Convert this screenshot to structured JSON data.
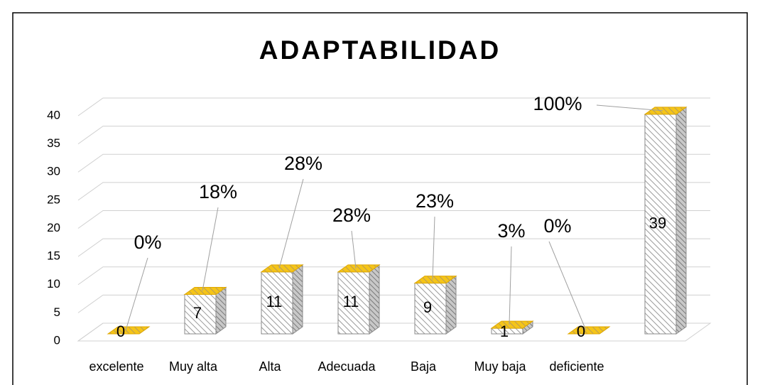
{
  "chart_data": {
    "type": "bar3d",
    "title": "ADAPTABILIDAD",
    "categories": [
      "excelente",
      "Muy alta",
      "Alta",
      "Adecuada",
      "Baja",
      "Muy baja",
      "deficiente",
      null
    ],
    "values": [
      0,
      7,
      11,
      11,
      9,
      1,
      0,
      39
    ],
    "annotations": [
      "0%",
      "18%",
      "28%",
      "28%",
      "23%",
      "3%",
      "0%",
      "100%"
    ],
    "ylim": [
      0,
      40
    ],
    "yticks": [
      0,
      5,
      10,
      15,
      20,
      25,
      30,
      35,
      40
    ],
    "grid": true,
    "color": "#d9d9d9",
    "top_color": "#f5c518"
  }
}
